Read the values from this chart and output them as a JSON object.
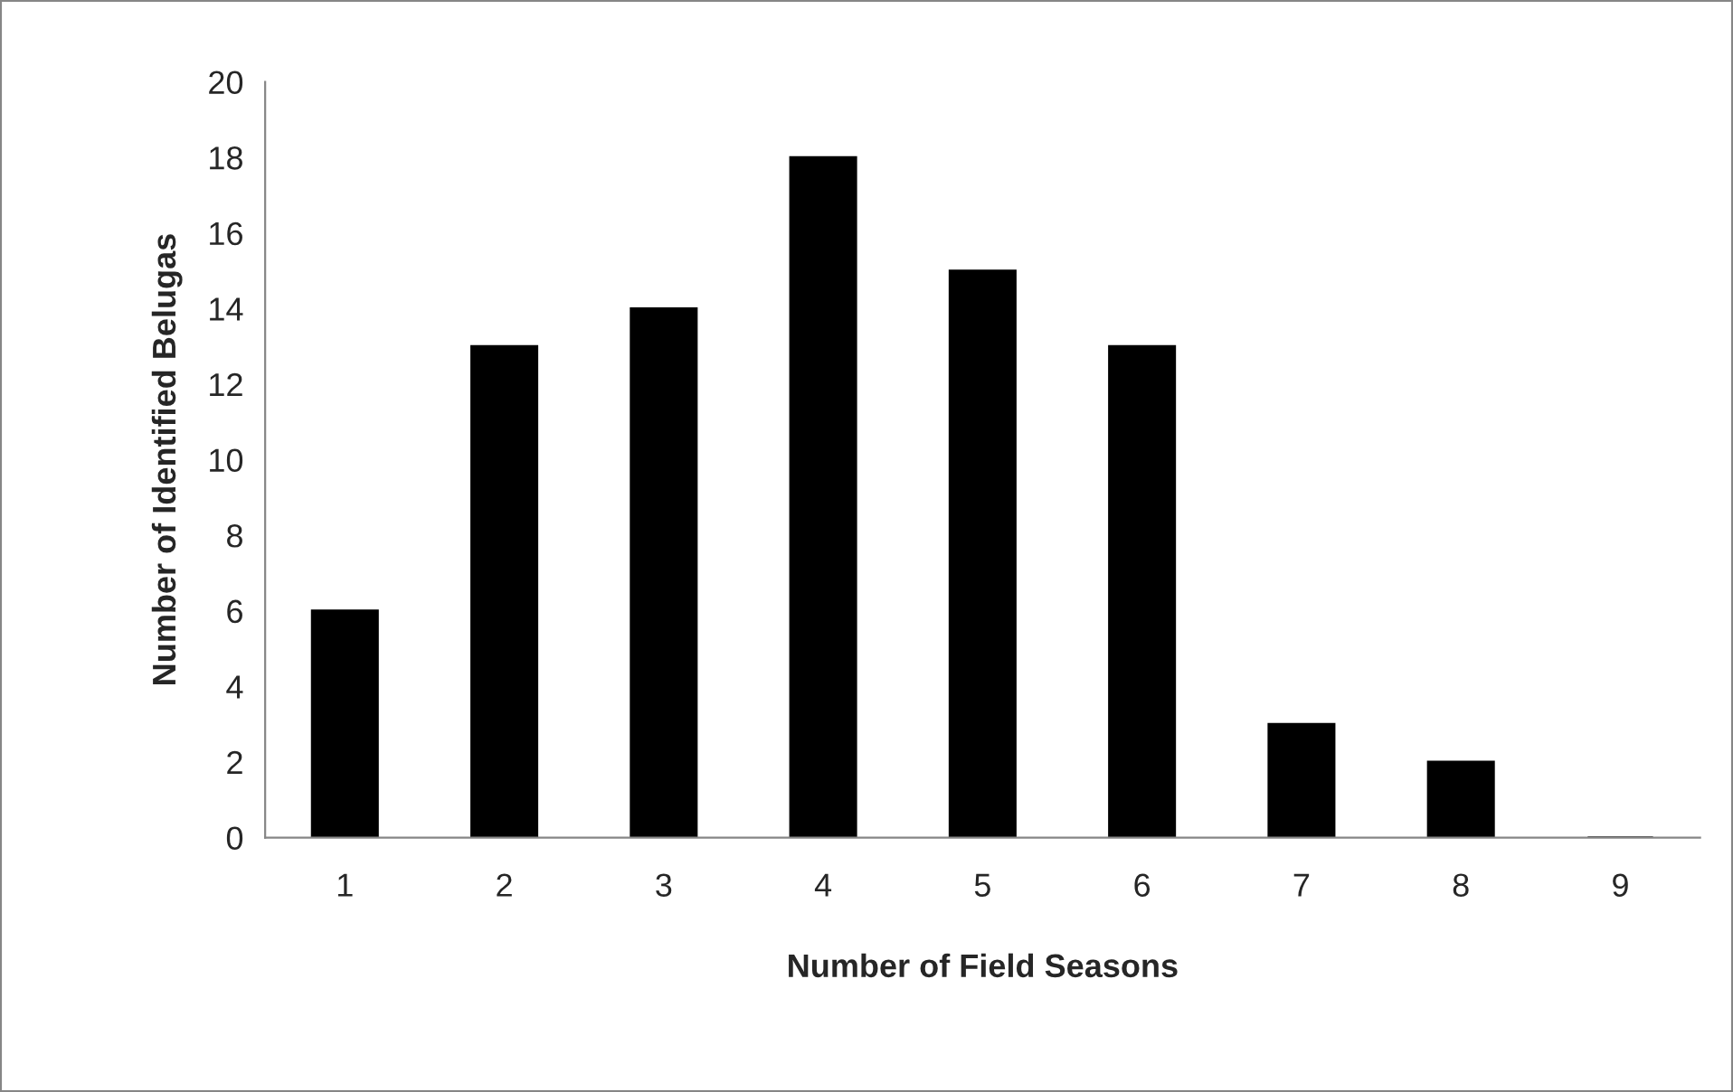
{
  "chart_data": {
    "type": "bar",
    "xlabel": "Number of Field Seasons",
    "ylabel": "Number of Identified Belugas",
    "categories": [
      "1",
      "2",
      "3",
      "4",
      "5",
      "6",
      "7",
      "8",
      "9"
    ],
    "values": [
      6,
      13,
      14,
      18,
      15,
      13,
      3,
      2,
      0
    ],
    "color": "#000000",
    "ylim": [
      0,
      20
    ],
    "yticks": [
      0,
      2,
      4,
      6,
      8,
      10,
      12,
      14,
      16,
      18,
      20
    ],
    "grid": false,
    "legend": false
  }
}
